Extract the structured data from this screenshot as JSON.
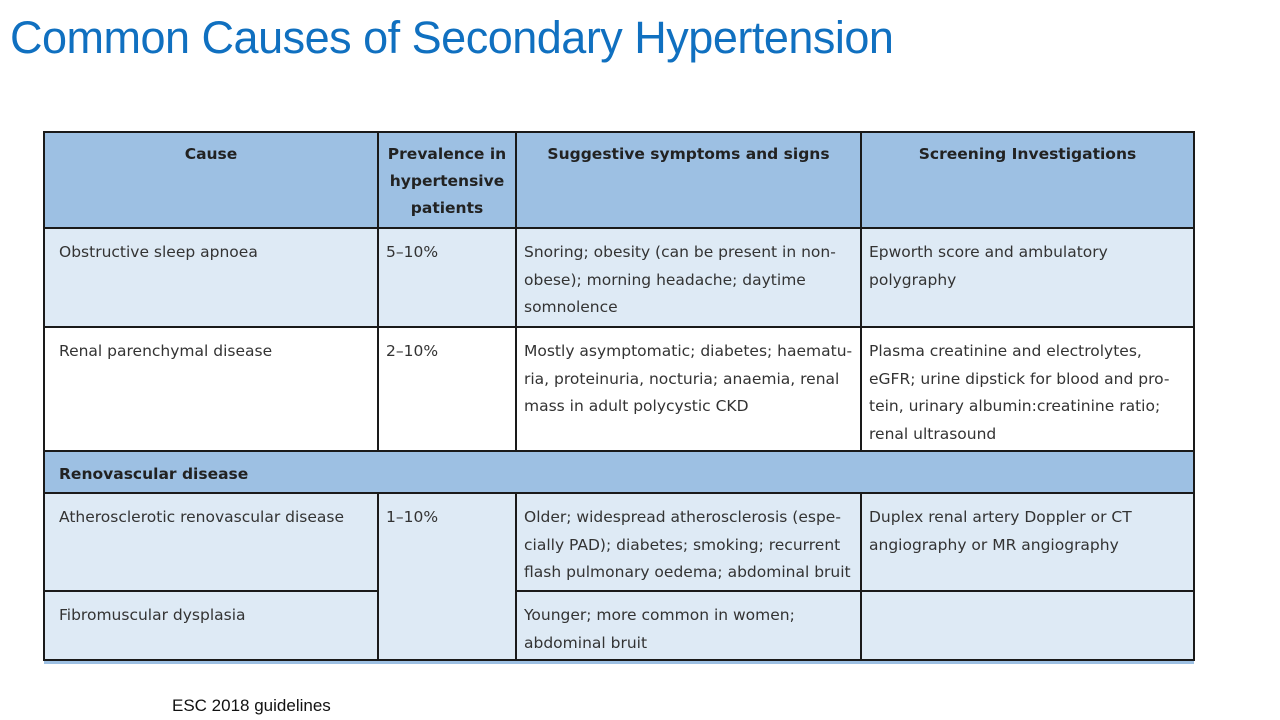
{
  "title": "Common Causes of Secondary Hypertension",
  "table": {
    "headers": {
      "cause": "Cause",
      "prevalence": [
        "Prevalence in",
        "hypertensive",
        "patients"
      ],
      "symptoms": "Suggestive symptoms and signs",
      "screening": "Screening Investigations"
    },
    "rows": [
      {
        "cause": "Obstructive sleep apnoea",
        "prevalence": "5–10%",
        "symptoms": [
          "Snoring; obesity (can be present in non-",
          "obese); morning headache; daytime",
          "somnolence"
        ],
        "screening": [
          "Epworth score and ambulatory",
          "polygraphy"
        ]
      },
      {
        "cause": "Renal parenchymal disease",
        "prevalence": "2–10%",
        "symptoms": [
          "Mostly asymptomatic; diabetes; haematu-",
          "ria, proteinuria, nocturia; anaemia, renal",
          "mass in adult polycystic CKD"
        ],
        "screening": [
          "Plasma creatinine and electrolytes,",
          "eGFR; urine dipstick for blood and pro-",
          "tein, urinary albumin:creatinine ratio;",
          "renal ultrasound"
        ]
      }
    ],
    "section": "Renovascular disease",
    "section_rows": [
      {
        "cause": "Atherosclerotic renovascular disease",
        "prevalence": "1–10%",
        "symptoms": [
          "Older; widespread atherosclerosis (espe-",
          "cially PAD); diabetes; smoking; recurrent",
          "flash pulmonary oedema; abdominal bruit"
        ],
        "screening": [
          "Duplex renal artery Doppler or CT",
          "angiography or MR angiography"
        ]
      },
      {
        "cause": "Fibromuscular dysplasia",
        "symptoms": [
          "Younger; more common in women;",
          "abdominal bruit"
        ],
        "screening": ""
      }
    ]
  },
  "footnote": "ESC 2018 guidelines",
  "colors": {
    "title": "#1070c0",
    "header_bg": "#9dc0e3",
    "row_alt_bg": "#deeaf5"
  }
}
